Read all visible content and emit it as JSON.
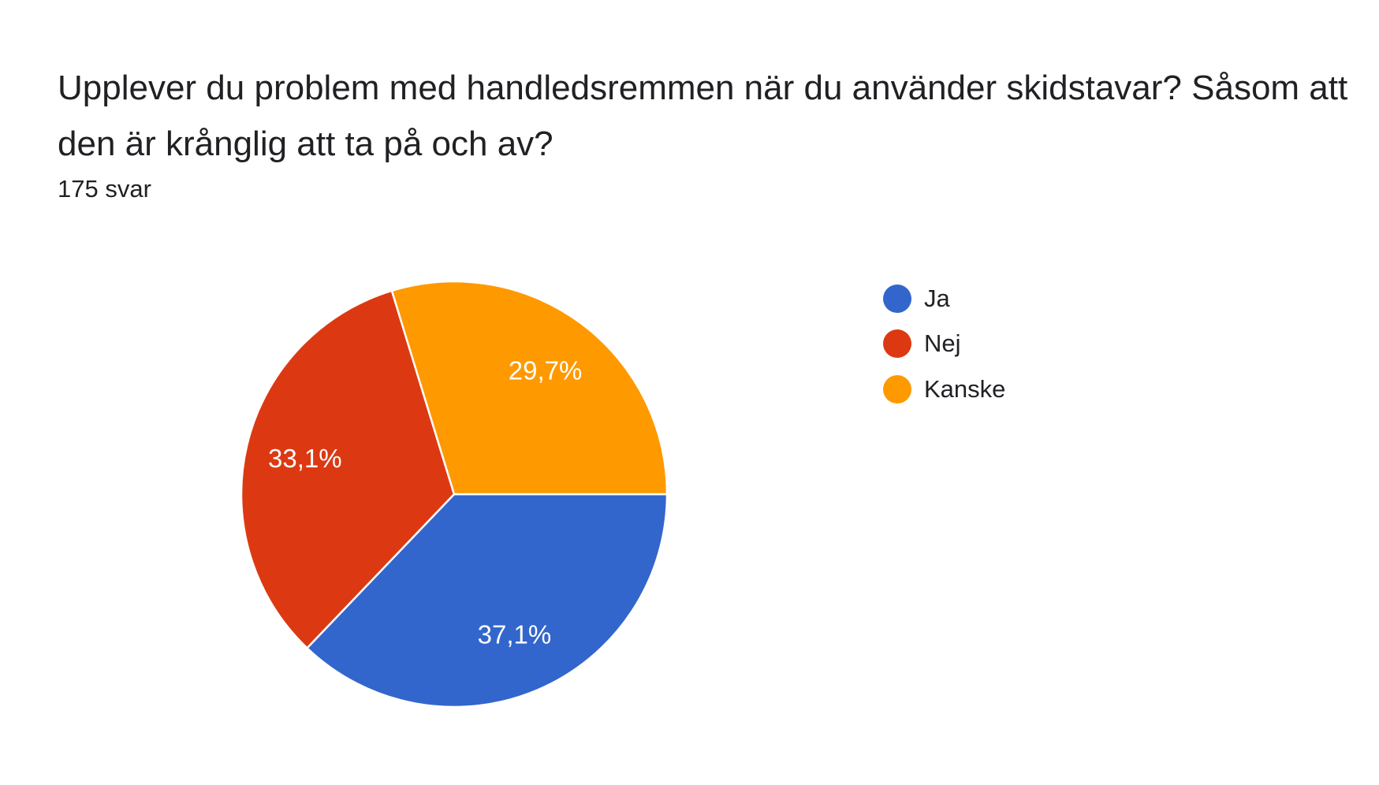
{
  "header": {
    "title": "Upplever du problem med handledsremmen när du använder skidstavar? Såsom att den är krånglig att ta på och av?",
    "response_count": "175 svar"
  },
  "chart_data": {
    "type": "pie",
    "categories": [
      "Ja",
      "Nej",
      "Kanske"
    ],
    "values": [
      37.1,
      33.1,
      29.7
    ],
    "labels": [
      "37,1%",
      "33,1%",
      "29,7%"
    ],
    "colors": [
      "#3366cc",
      "#dc3912",
      "#ff9900"
    ],
    "start_angle": "3 o'clock, clockwise",
    "legend": "right"
  }
}
